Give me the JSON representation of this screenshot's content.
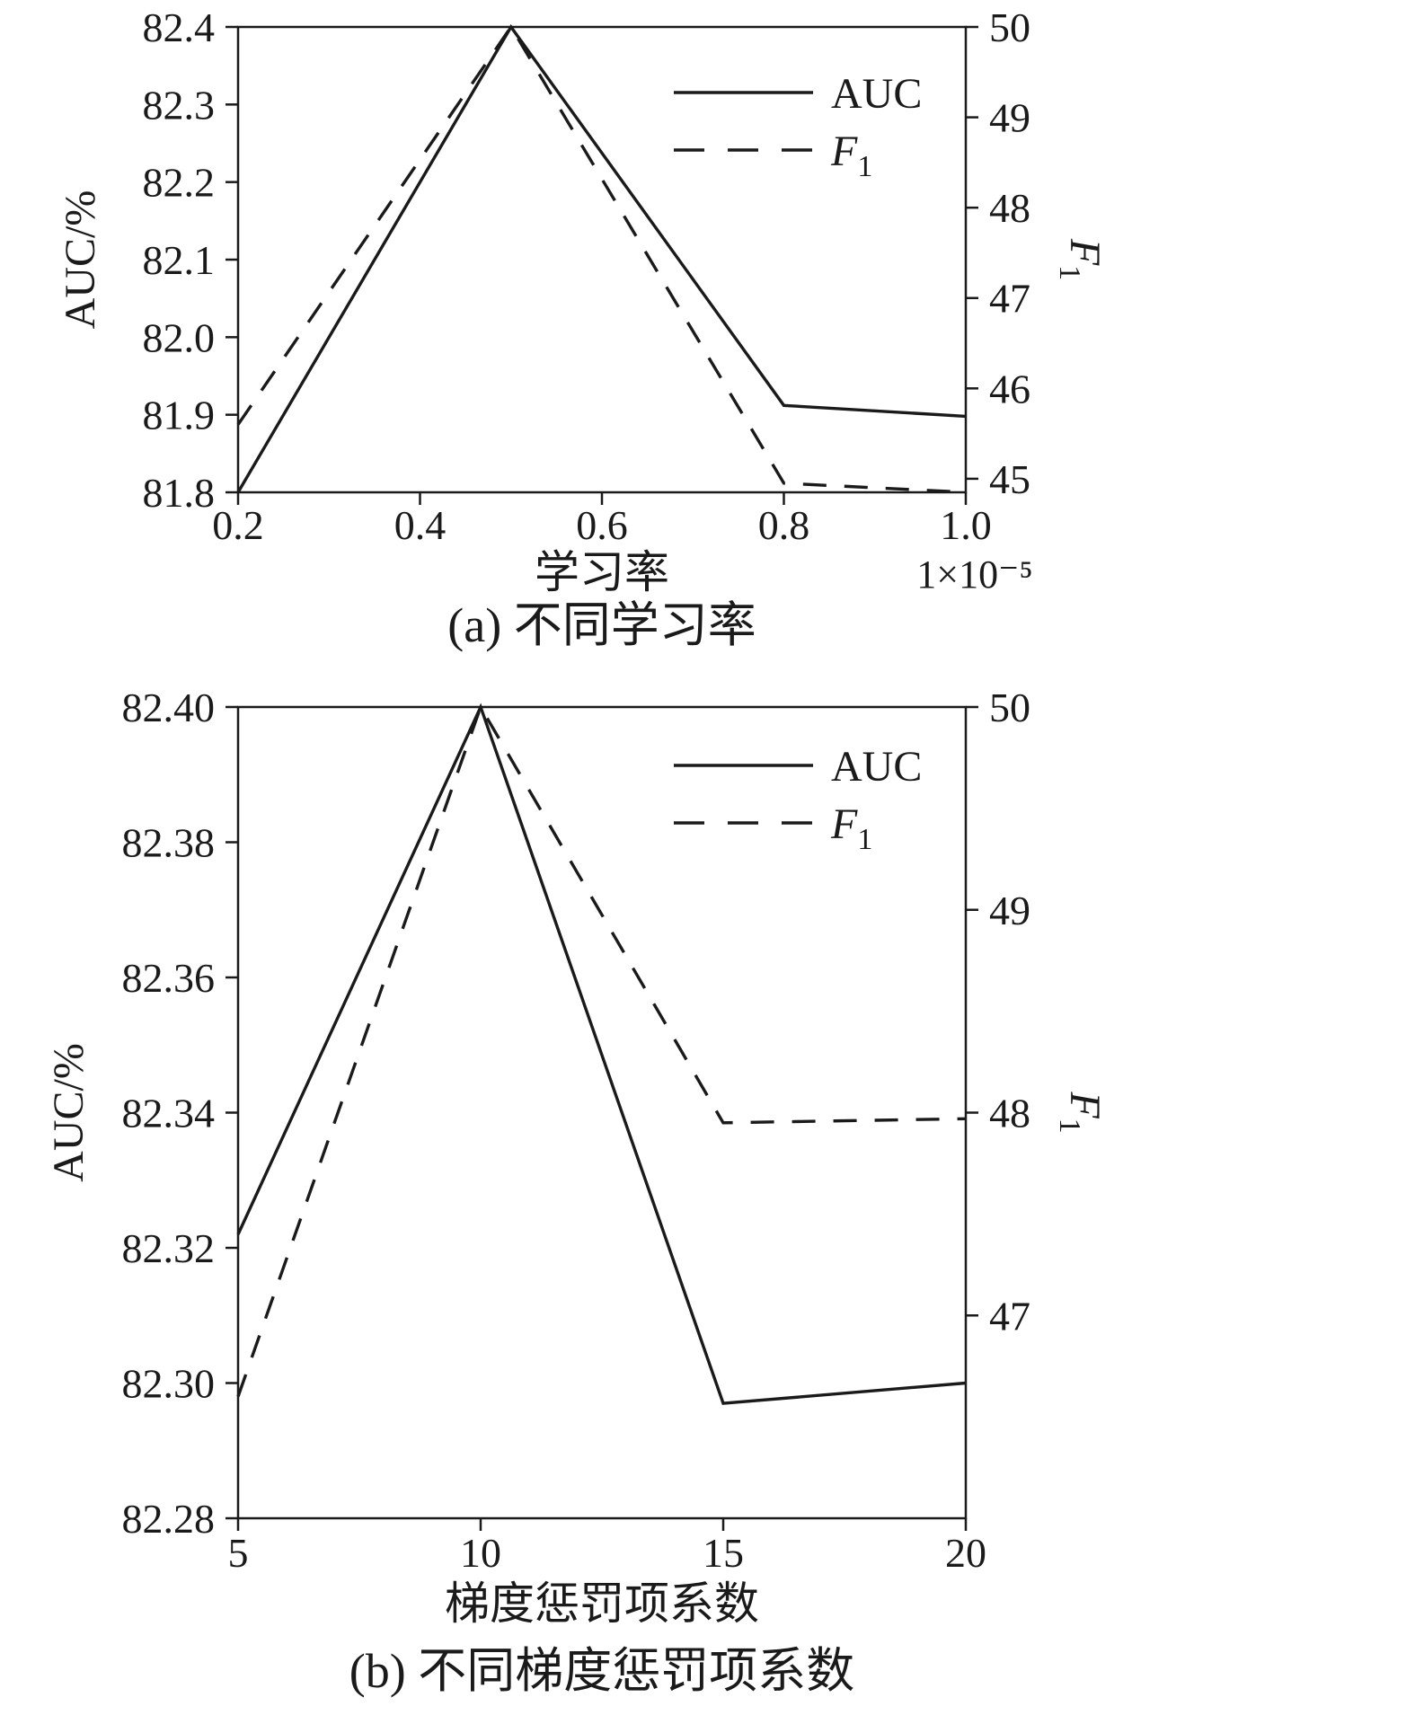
{
  "page": {
    "background": "#ffffff",
    "ink_color": "#1a1a1a"
  },
  "chart_data": [
    {
      "id": "a",
      "type": "line",
      "caption": "(a) 不同学习率",
      "xlabel": "学习率",
      "x_unit_label": "1×10⁻⁵",
      "ylabel_left": "AUC/%",
      "ylabel_right": {
        "base": "F",
        "sub": "1"
      },
      "xlim": [
        0.2,
        1.0
      ],
      "xticks": [
        "0.2",
        "0.4",
        "0.6",
        "0.8",
        "1.0"
      ],
      "ylim_left": [
        81.8,
        82.4
      ],
      "yticks_left": [
        "81.8",
        "81.9",
        "82.0",
        "82.1",
        "82.2",
        "82.3",
        "82.4"
      ],
      "ylim_right": [
        44.85,
        50
      ],
      "yticks_right": [
        "45",
        "46",
        "47",
        "48",
        "49",
        "50"
      ],
      "x": [
        0.2,
        0.5,
        0.8,
        1.0
      ],
      "series": [
        {
          "name": "AUC",
          "axis": "left",
          "line": "solid",
          "values": [
            81.8,
            82.4,
            81.912,
            81.898
          ]
        },
        {
          "name": "F1",
          "axis": "right",
          "line": "dashed",
          "values": [
            45.6,
            50.0,
            44.95,
            44.85
          ]
        }
      ],
      "legend": [
        {
          "label": "AUC",
          "line": "solid"
        },
        {
          "label": "F",
          "sub": "1",
          "line": "dashed"
        }
      ],
      "legend_position": "top-right",
      "grid": false
    },
    {
      "id": "b",
      "type": "line",
      "caption": "(b) 不同梯度惩罚项系数",
      "xlabel": "梯度惩罚项系数",
      "x_unit_label": "",
      "ylabel_left": "AUC/%",
      "ylabel_right": {
        "base": "F",
        "sub": "1"
      },
      "xlim": [
        5,
        20
      ],
      "xticks": [
        "5",
        "10",
        "15",
        "20"
      ],
      "ylim_left": [
        82.28,
        82.4
      ],
      "yticks_left": [
        "82.28",
        "82.30",
        "82.32",
        "82.34",
        "82.36",
        "82.38",
        "82.40"
      ],
      "ylim_right": [
        46,
        50
      ],
      "yticks_right": [
        "47",
        "48",
        "49",
        "50"
      ],
      "x": [
        5,
        10,
        15,
        20
      ],
      "series": [
        {
          "name": "AUC",
          "axis": "left",
          "line": "solid",
          "values": [
            82.322,
            82.4,
            82.297,
            82.3
          ]
        },
        {
          "name": "F1",
          "axis": "right",
          "line": "dashed",
          "values": [
            46.6,
            50.0,
            47.95,
            47.97
          ]
        }
      ],
      "legend": [
        {
          "label": "AUC",
          "line": "solid"
        },
        {
          "label": "F",
          "sub": "1",
          "line": "dashed"
        }
      ],
      "legend_position": "top-right",
      "grid": false
    }
  ]
}
